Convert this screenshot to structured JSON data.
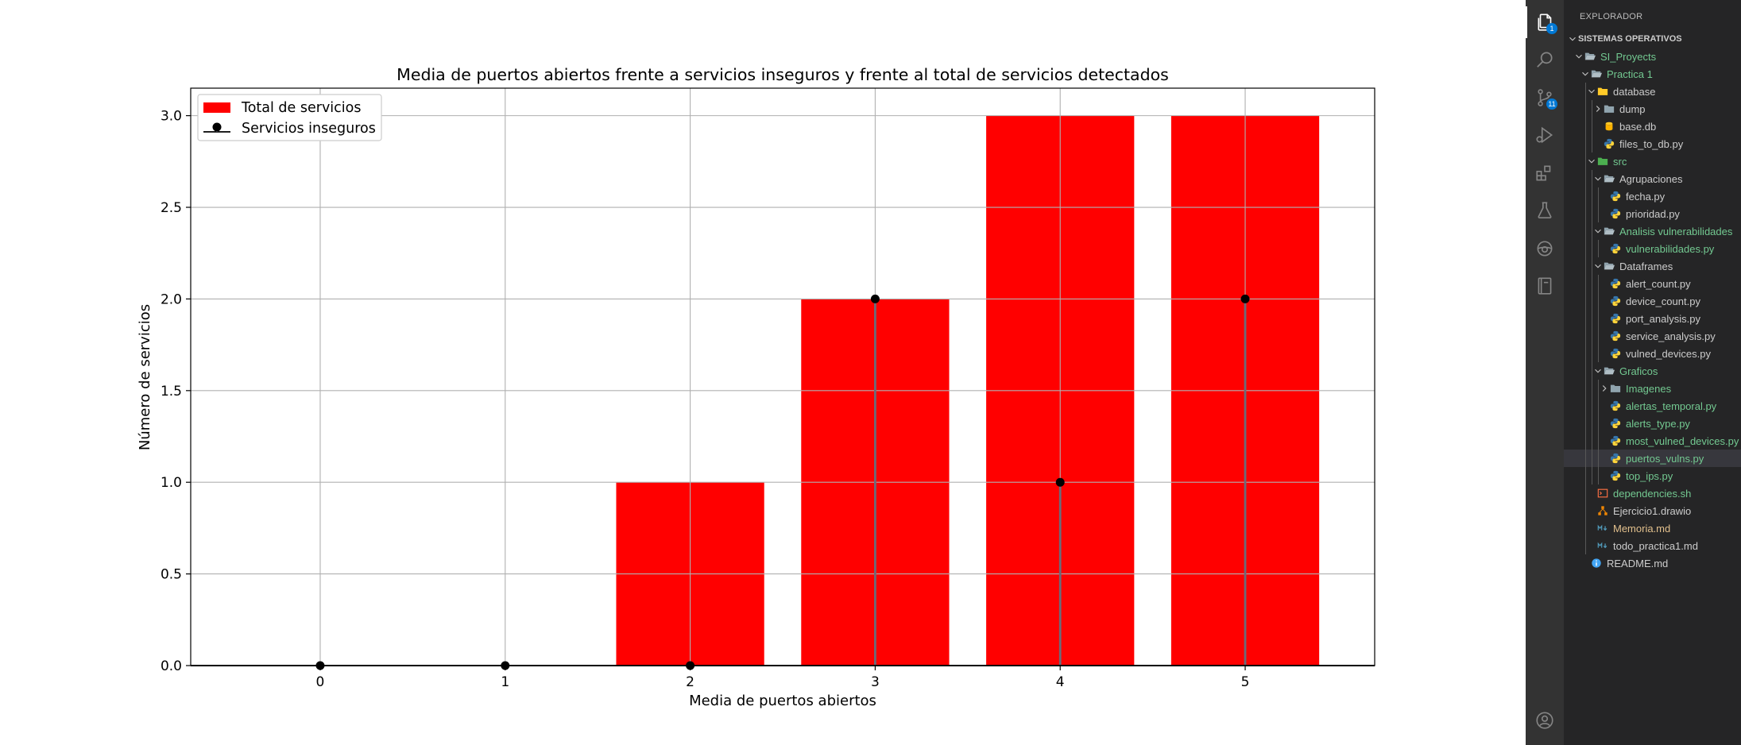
{
  "chart_data": {
    "type": "bar",
    "title": "Media de puertos abiertos frente a servicios inseguros y frente al total de servicios detectados",
    "xlabel": "Media de puertos abiertos",
    "ylabel": "Número de servicios",
    "categories": [
      0,
      1,
      2,
      3,
      4,
      5
    ],
    "x_ticks": [
      "0",
      "1",
      "2",
      "3",
      "4",
      "5"
    ],
    "y_ticks": [
      "0.0",
      "0.5",
      "1.0",
      "1.5",
      "2.0",
      "2.5",
      "3.0"
    ],
    "xlim": [
      -0.7,
      5.7
    ],
    "ylim": [
      0,
      3.15
    ],
    "grid": true,
    "legend_position": "top-left",
    "series": [
      {
        "name": "Total de servicios",
        "kind": "bar",
        "color": "#ff0000",
        "values": [
          0,
          0,
          1,
          2,
          3,
          3
        ]
      },
      {
        "name": "Servicios inseguros",
        "kind": "stem",
        "color": "#000000",
        "values": [
          0,
          0,
          0,
          2,
          1,
          2
        ]
      }
    ]
  },
  "vscode": {
    "activity_bar": [
      {
        "icon": "files-icon",
        "active": true,
        "badge": "1"
      },
      {
        "icon": "search-icon",
        "active": false
      },
      {
        "icon": "source-control-icon",
        "active": false,
        "badge": "11"
      },
      {
        "icon": "run-debug-icon",
        "active": false
      },
      {
        "icon": "extensions-icon",
        "active": false
      },
      {
        "icon": "testing-icon",
        "active": false
      },
      {
        "icon": "remote-icon",
        "active": false
      },
      {
        "icon": "notebook-icon",
        "active": false
      }
    ],
    "account_icon": "account-icon",
    "explorer_title": "EXPLORADOR",
    "tree": [
      {
        "label": "SISTEMAS OPERATIVOS",
        "depth": 0,
        "chevron": "down",
        "type": "section"
      },
      {
        "label": "SI_Proyects",
        "depth": 1,
        "chevron": "down",
        "type": "folder-open",
        "color": "#73c991"
      },
      {
        "label": "Practica 1",
        "depth": 2,
        "chevron": "down",
        "type": "folder-open",
        "color": "#73c991"
      },
      {
        "label": "database",
        "depth": 3,
        "chevron": "down",
        "type": "folder-db"
      },
      {
        "label": "dump",
        "depth": 4,
        "chevron": "right",
        "type": "folder"
      },
      {
        "label": "base.db",
        "depth": 4,
        "chevron": "none",
        "type": "db"
      },
      {
        "label": "files_to_db.py",
        "depth": 4,
        "chevron": "none",
        "type": "py"
      },
      {
        "label": "src",
        "depth": 3,
        "chevron": "down",
        "type": "folder-src",
        "color": "#73c991"
      },
      {
        "label": "Agrupaciones",
        "depth": 4,
        "chevron": "down",
        "type": "folder-open"
      },
      {
        "label": "fecha.py",
        "depth": 5,
        "chevron": "none",
        "type": "py"
      },
      {
        "label": "prioridad.py",
        "depth": 5,
        "chevron": "none",
        "type": "py"
      },
      {
        "label": "Analisis vulnerabilidades",
        "depth": 4,
        "chevron": "down",
        "type": "folder-open",
        "color": "#73c991"
      },
      {
        "label": "vulnerabilidades.py",
        "depth": 5,
        "chevron": "none",
        "type": "py",
        "color": "#73c991"
      },
      {
        "label": "Dataframes",
        "depth": 4,
        "chevron": "down",
        "type": "folder-open"
      },
      {
        "label": "alert_count.py",
        "depth": 5,
        "chevron": "none",
        "type": "py"
      },
      {
        "label": "device_count.py",
        "depth": 5,
        "chevron": "none",
        "type": "py"
      },
      {
        "label": "port_analysis.py",
        "depth": 5,
        "chevron": "none",
        "type": "py"
      },
      {
        "label": "service_analysis.py",
        "depth": 5,
        "chevron": "none",
        "type": "py"
      },
      {
        "label": "vulned_devices.py",
        "depth": 5,
        "chevron": "none",
        "type": "py"
      },
      {
        "label": "Graficos",
        "depth": 4,
        "chevron": "down",
        "type": "folder-open",
        "color": "#73c991"
      },
      {
        "label": "Imagenes",
        "depth": 5,
        "chevron": "right",
        "type": "folder",
        "color": "#73c991"
      },
      {
        "label": "alertas_temporal.py",
        "depth": 5,
        "chevron": "none",
        "type": "py",
        "color": "#73c991"
      },
      {
        "label": "alerts_type.py",
        "depth": 5,
        "chevron": "none",
        "type": "py",
        "color": "#73c991"
      },
      {
        "label": "most_vulned_devices.py",
        "depth": 5,
        "chevron": "none",
        "type": "py",
        "color": "#73c991"
      },
      {
        "label": "puertos_vulns.py",
        "depth": 5,
        "chevron": "none",
        "type": "py",
        "color": "#73c991",
        "selected": true
      },
      {
        "label": "top_ips.py",
        "depth": 5,
        "chevron": "none",
        "type": "py",
        "color": "#73c991"
      },
      {
        "label": "dependencies.sh",
        "depth": 3,
        "chevron": "none",
        "type": "sh",
        "color": "#73c991"
      },
      {
        "label": "Ejercicio1.drawio",
        "depth": 3,
        "chevron": "none",
        "type": "drawio"
      },
      {
        "label": "Memoria.md",
        "depth": 3,
        "chevron": "none",
        "type": "md",
        "color": "#e2c08d"
      },
      {
        "label": "todo_practica1.md",
        "depth": 3,
        "chevron": "none",
        "type": "md"
      },
      {
        "label": "README.md",
        "depth": 2,
        "chevron": "none",
        "type": "info"
      }
    ]
  }
}
